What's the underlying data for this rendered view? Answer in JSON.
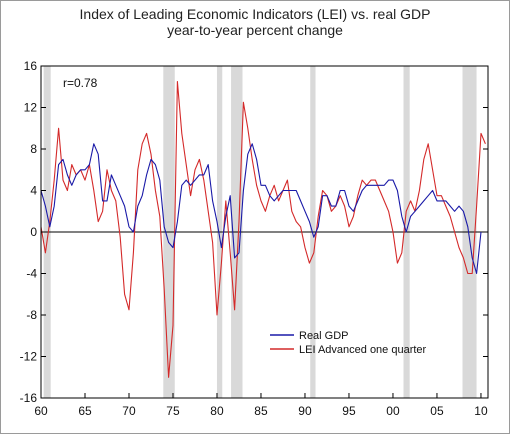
{
  "chart_data": {
    "type": "line",
    "title": "Index of Leading Economic Indicators (LEI) vs. real GDP",
    "subtitle": "year-to-year percent change",
    "annotation": "r=0.78",
    "x_tick_labels": [
      "60",
      "65",
      "70",
      "75",
      "80",
      "85",
      "90",
      "95",
      "00",
      "05",
      "10"
    ],
    "x_ticks_year": [
      1960,
      1965,
      1970,
      1975,
      1980,
      1985,
      1990,
      1995,
      2000,
      2005,
      2010
    ],
    "xlim": [
      1960,
      2010.8
    ],
    "ylim": [
      -16,
      16
    ],
    "y_ticks": [
      -16,
      -12,
      -8,
      -4,
      0,
      4,
      8,
      12,
      16
    ],
    "recessions": [
      [
        1960.3,
        1961.1
      ],
      [
        1973.9,
        1975.2
      ],
      [
        1980.0,
        1980.6
      ],
      [
        1981.6,
        1982.9
      ],
      [
        1990.6,
        1991.2
      ],
      [
        2001.2,
        2001.9
      ],
      [
        2007.9,
        2009.5
      ]
    ],
    "colors": {
      "real_gdp": "#1a1aa8",
      "lei": "#d42a2a",
      "recession": "#d9d9d9",
      "axis": "#000000"
    },
    "legend_position": "bottom-center",
    "series": [
      {
        "name": "Real GDP",
        "x": [
          1960.0,
          1960.5,
          1961.0,
          1961.5,
          1962.0,
          1962.5,
          1963.0,
          1963.5,
          1964.0,
          1964.5,
          1965.0,
          1965.5,
          1966.0,
          1966.5,
          1967.0,
          1967.5,
          1968.0,
          1968.5,
          1969.0,
          1969.5,
          1970.0,
          1970.5,
          1971.0,
          1971.5,
          1972.0,
          1972.5,
          1973.0,
          1973.5,
          1974.0,
          1974.5,
          1975.0,
          1975.5,
          1976.0,
          1976.5,
          1977.0,
          1977.5,
          1978.0,
          1978.5,
          1979.0,
          1979.5,
          1980.0,
          1980.5,
          1981.0,
          1981.5,
          1982.0,
          1982.5,
          1983.0,
          1983.5,
          1984.0,
          1984.5,
          1985.0,
          1985.5,
          1986.0,
          1986.5,
          1987.0,
          1987.5,
          1988.0,
          1988.5,
          1989.0,
          1989.5,
          1990.0,
          1990.5,
          1991.0,
          1991.5,
          1992.0,
          1992.5,
          1993.0,
          1993.5,
          1994.0,
          1994.5,
          1995.0,
          1995.5,
          1996.0,
          1996.5,
          1997.0,
          1997.5,
          1998.0,
          1998.5,
          1999.0,
          1999.5,
          2000.0,
          2000.5,
          2001.0,
          2001.5,
          2002.0,
          2002.5,
          2003.0,
          2003.5,
          2004.0,
          2004.5,
          2005.0,
          2005.5,
          2006.0,
          2006.5,
          2007.0,
          2007.5,
          2008.0,
          2008.5,
          2009.0,
          2009.5,
          2010.0
        ],
        "values": [
          4.0,
          2.5,
          0.5,
          2.5,
          6.5,
          7.0,
          5.5,
          4.5,
          5.5,
          6.0,
          6.0,
          6.5,
          8.5,
          7.5,
          3.0,
          3.0,
          5.5,
          4.5,
          3.5,
          2.5,
          0.5,
          0.0,
          2.5,
          3.5,
          5.5,
          7.0,
          6.5,
          5.0,
          0.5,
          -1.0,
          -1.5,
          1.0,
          4.5,
          5.0,
          4.5,
          5.0,
          5.5,
          5.5,
          6.5,
          3.0,
          1.0,
          -1.5,
          1.5,
          3.5,
          -2.5,
          -2.0,
          4.0,
          7.5,
          8.5,
          7.0,
          4.5,
          4.5,
          3.5,
          3.0,
          3.5,
          4.0,
          4.0,
          4.0,
          4.0,
          3.0,
          2.0,
          1.0,
          -0.5,
          0.5,
          3.5,
          3.5,
          2.5,
          2.5,
          4.0,
          4.0,
          2.5,
          2.0,
          3.0,
          4.0,
          4.5,
          4.5,
          4.5,
          4.5,
          4.5,
          5.0,
          5.0,
          4.0,
          1.5,
          0.0,
          1.5,
          2.0,
          2.5,
          3.0,
          3.5,
          4.0,
          3.0,
          3.0,
          3.0,
          2.5,
          2.0,
          2.5,
          2.0,
          0.5,
          -2.5,
          -4.0,
          0.0
        ]
      },
      {
        "name": "LEI Advanced one quarter",
        "x": [
          1960.0,
          1960.5,
          1961.0,
          1961.5,
          1962.0,
          1962.5,
          1963.0,
          1963.5,
          1964.0,
          1964.5,
          1965.0,
          1965.5,
          1966.0,
          1966.5,
          1967.0,
          1967.5,
          1968.0,
          1968.5,
          1969.0,
          1969.5,
          1970.0,
          1970.5,
          1971.0,
          1971.5,
          1972.0,
          1972.5,
          1973.0,
          1973.5,
          1974.0,
          1974.5,
          1975.0,
          1975.5,
          1976.0,
          1976.5,
          1977.0,
          1977.5,
          1978.0,
          1978.5,
          1979.0,
          1979.5,
          1980.0,
          1980.5,
          1981.0,
          1981.5,
          1982.0,
          1982.5,
          1983.0,
          1983.5,
          1984.0,
          1984.5,
          1985.0,
          1985.5,
          1986.0,
          1986.5,
          1987.0,
          1987.5,
          1988.0,
          1988.5,
          1989.0,
          1989.5,
          1990.0,
          1990.5,
          1991.0,
          1991.5,
          1992.0,
          1992.5,
          1993.0,
          1993.5,
          1994.0,
          1994.5,
          1995.0,
          1995.5,
          1996.0,
          1996.5,
          1997.0,
          1997.5,
          1998.0,
          1998.5,
          1999.0,
          1999.5,
          2000.0,
          2000.5,
          2001.0,
          2001.5,
          2002.0,
          2002.5,
          2003.0,
          2003.5,
          2004.0,
          2004.5,
          2005.0,
          2005.5,
          2006.0,
          2006.5,
          2007.0,
          2007.5,
          2008.0,
          2008.5,
          2009.0,
          2009.5,
          2010.0,
          2010.5
        ],
        "values": [
          0.5,
          -2.0,
          1.0,
          5.0,
          10.0,
          5.0,
          4.0,
          6.5,
          5.5,
          6.0,
          5.0,
          6.5,
          4.0,
          1.0,
          2.0,
          6.0,
          4.0,
          3.0,
          -0.5,
          -6.0,
          -7.5,
          -2.0,
          6.0,
          8.5,
          9.5,
          7.5,
          4.0,
          1.5,
          -5.5,
          -14.0,
          -9.0,
          14.5,
          9.5,
          6.5,
          3.5,
          6.0,
          7.0,
          5.0,
          2.0,
          -1.0,
          -8.0,
          -3.0,
          3.0,
          -2.0,
          -7.5,
          1.0,
          12.5,
          10.0,
          7.0,
          4.5,
          3.0,
          2.0,
          3.5,
          4.5,
          3.0,
          4.0,
          5.0,
          2.0,
          1.0,
          0.5,
          -1.5,
          -3.0,
          -2.0,
          1.5,
          4.0,
          3.5,
          2.0,
          2.5,
          3.5,
          2.5,
          0.5,
          1.5,
          3.5,
          5.0,
          4.5,
          5.0,
          5.0,
          4.0,
          3.0,
          2.0,
          0.0,
          -3.0,
          -2.0,
          2.0,
          3.0,
          2.0,
          4.0,
          7.0,
          8.5,
          6.0,
          3.5,
          3.5,
          2.5,
          1.5,
          0.0,
          -1.5,
          -2.5,
          -4.0,
          -4.0,
          2.5,
          9.5,
          8.5
        ]
      }
    ]
  }
}
